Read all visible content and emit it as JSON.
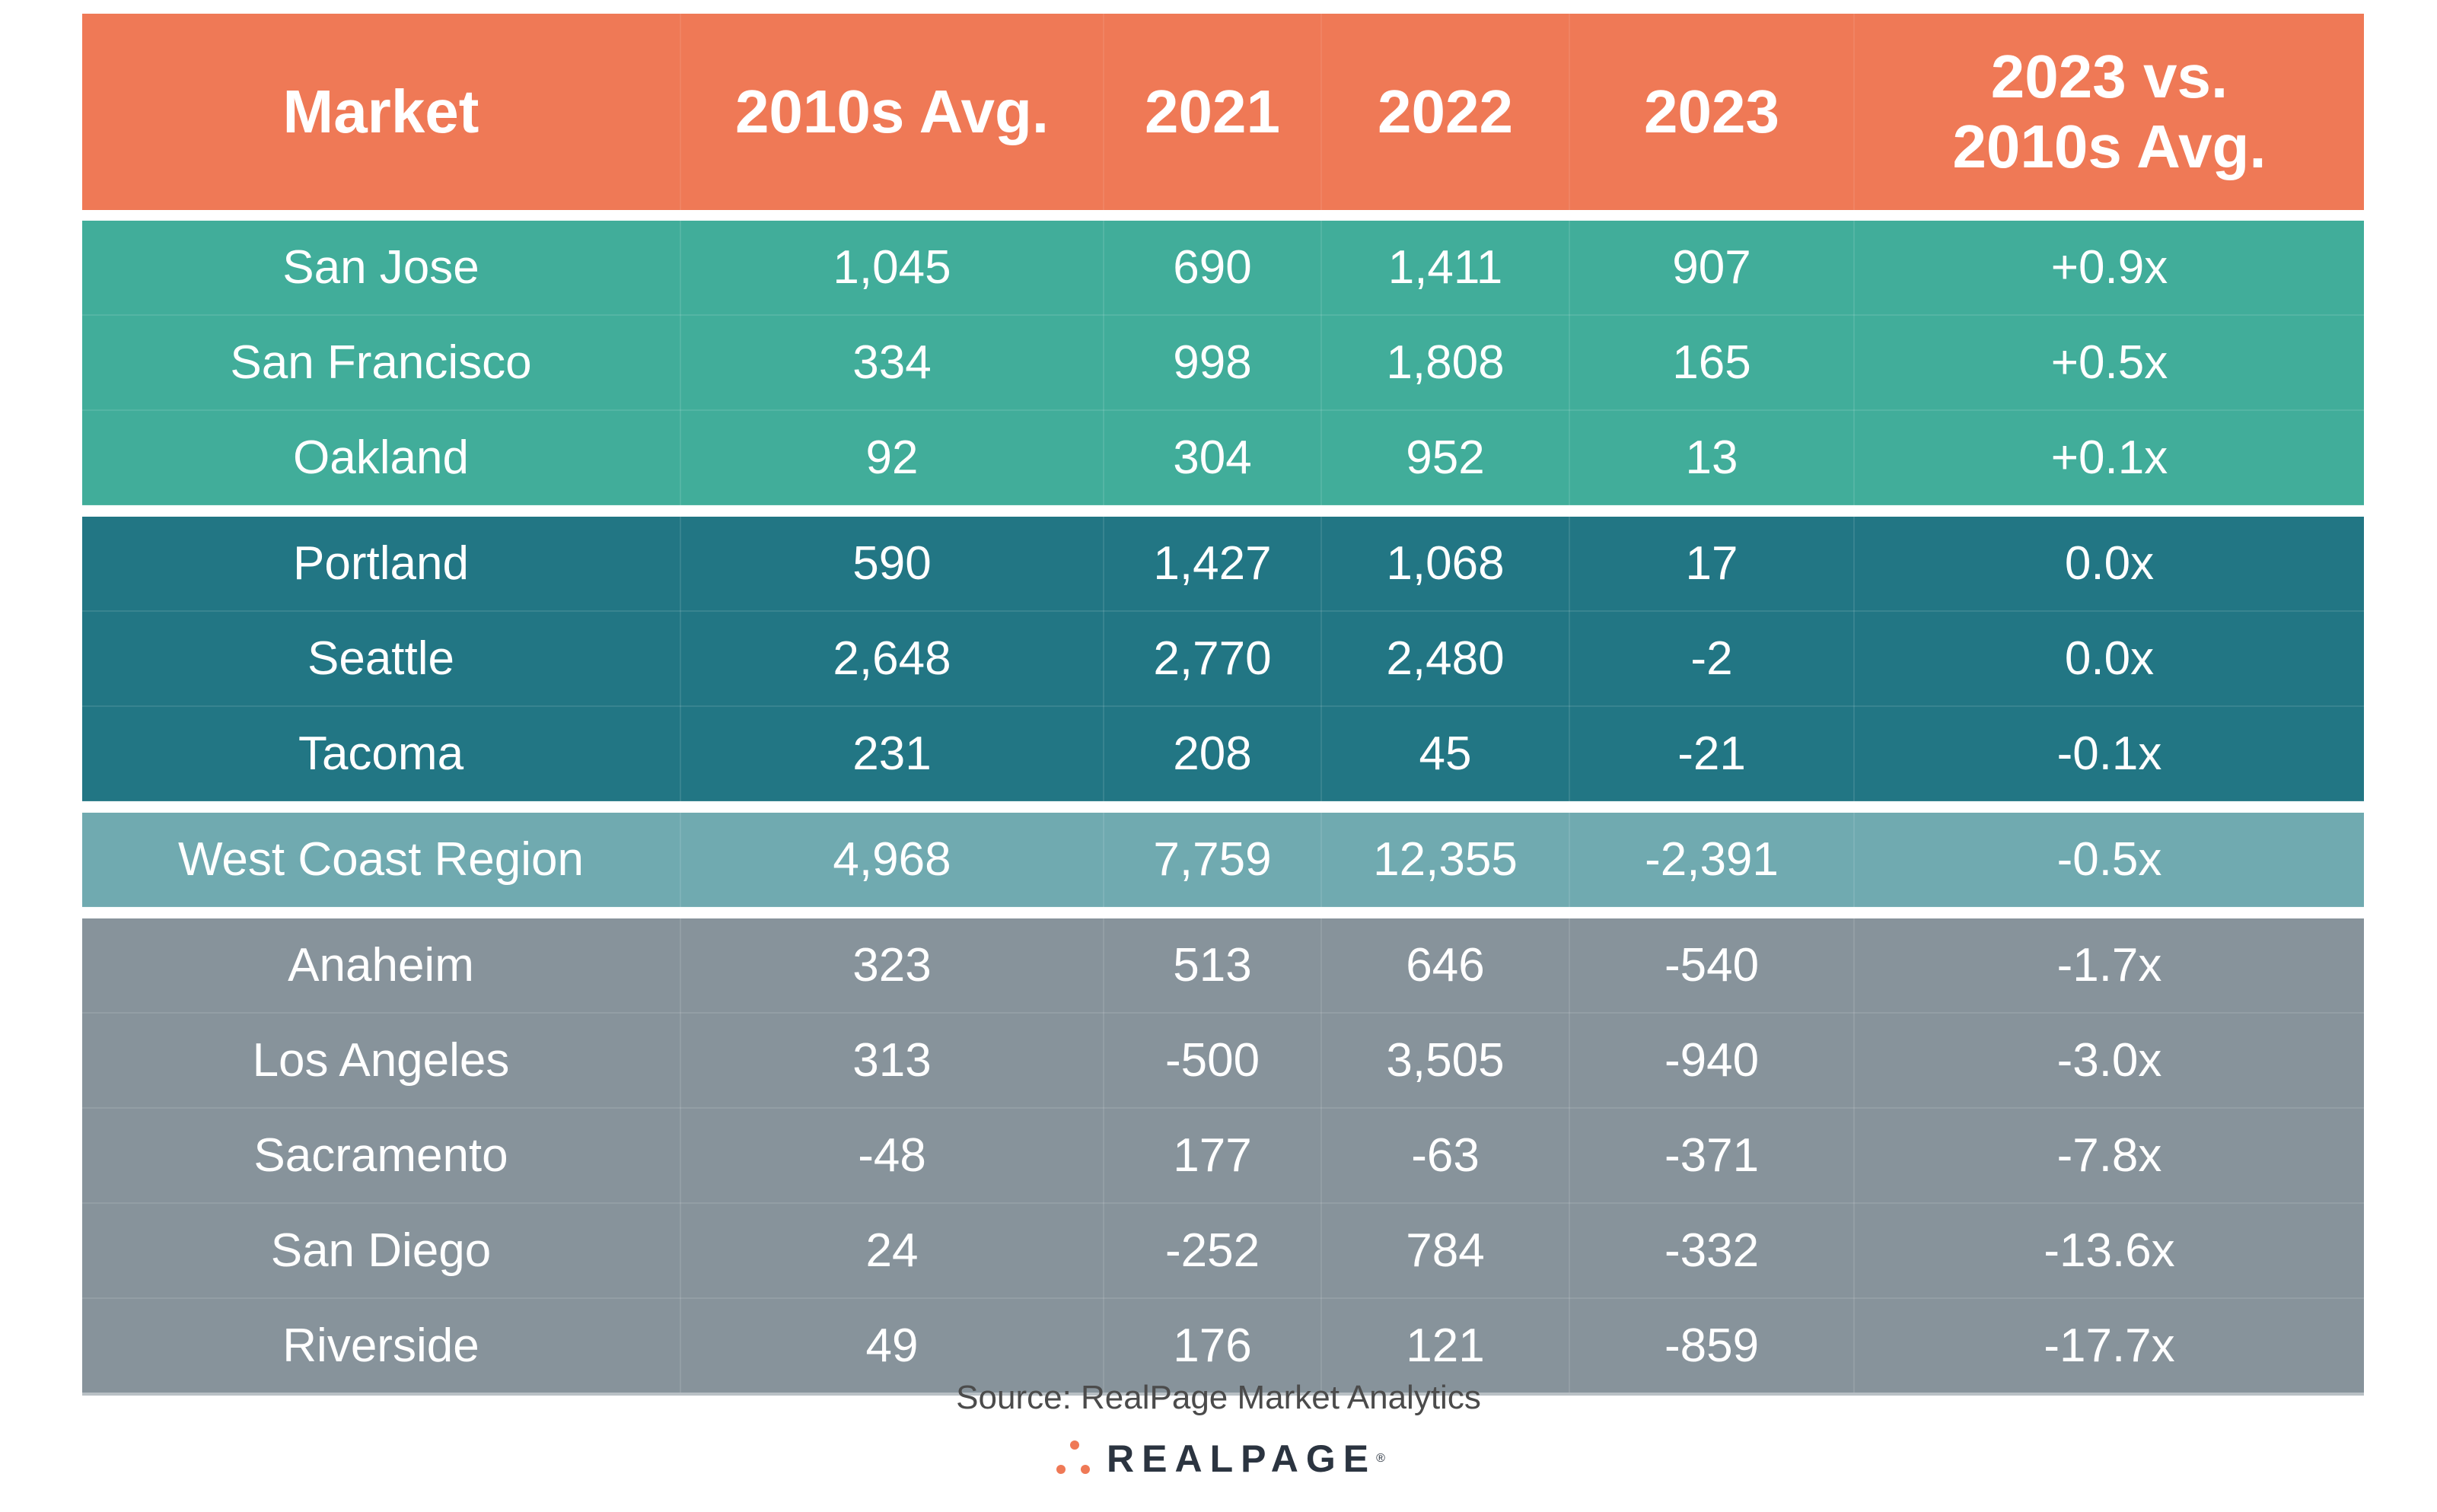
{
  "chart_data": {
    "type": "table",
    "columns": [
      "Market",
      "2010s Avg.",
      "2021",
      "2022",
      "2023",
      "2023 vs. 2010s Avg."
    ],
    "groups": [
      {
        "color": "#41ad9a",
        "rows": [
          [
            "San Jose",
            "1,045",
            "690",
            "1,411",
            "907",
            "+0.9x"
          ],
          [
            "San Francisco",
            "334",
            "998",
            "1,808",
            "165",
            "+0.5x"
          ],
          [
            "Oakland",
            "92",
            "304",
            "952",
            "13",
            "+0.1x"
          ]
        ]
      },
      {
        "color": "#227684",
        "rows": [
          [
            "Portland",
            "590",
            "1,427",
            "1,068",
            "17",
            "0.0x"
          ],
          [
            "Seattle",
            "2,648",
            "2,770",
            "2,480",
            "-2",
            "0.0x"
          ],
          [
            "Tacoma",
            "231",
            "208",
            "45",
            "-21",
            "-0.1x"
          ]
        ]
      },
      {
        "color": "#70aab0",
        "rows": [
          [
            "West Coast Region",
            "4,968",
            "7,759",
            "12,355",
            "-2,391",
            "-0.5x"
          ]
        ]
      },
      {
        "color": "#87939b",
        "rows": [
          [
            "Anaheim",
            "323",
            "513",
            "646",
            "-540",
            "-1.7x"
          ],
          [
            "Los Angeles",
            "313",
            "-500",
            "3,505",
            "-940",
            "-3.0x"
          ],
          [
            "Sacramento",
            "-48",
            "177",
            "-63",
            "-371",
            "-7.8x"
          ],
          [
            "San Diego",
            "24",
            "-252",
            "784",
            "-332",
            "-13.6x"
          ],
          [
            "Riverside",
            "49",
            "176",
            "121",
            "-859",
            "-17.7x"
          ]
        ]
      }
    ],
    "header_color": "#ef7956"
  },
  "footer": {
    "source": "Source: RealPage Market Analytics",
    "logo_text": "REALPAGE",
    "logo_mark": "®",
    "logo_color": "#ef7956"
  }
}
